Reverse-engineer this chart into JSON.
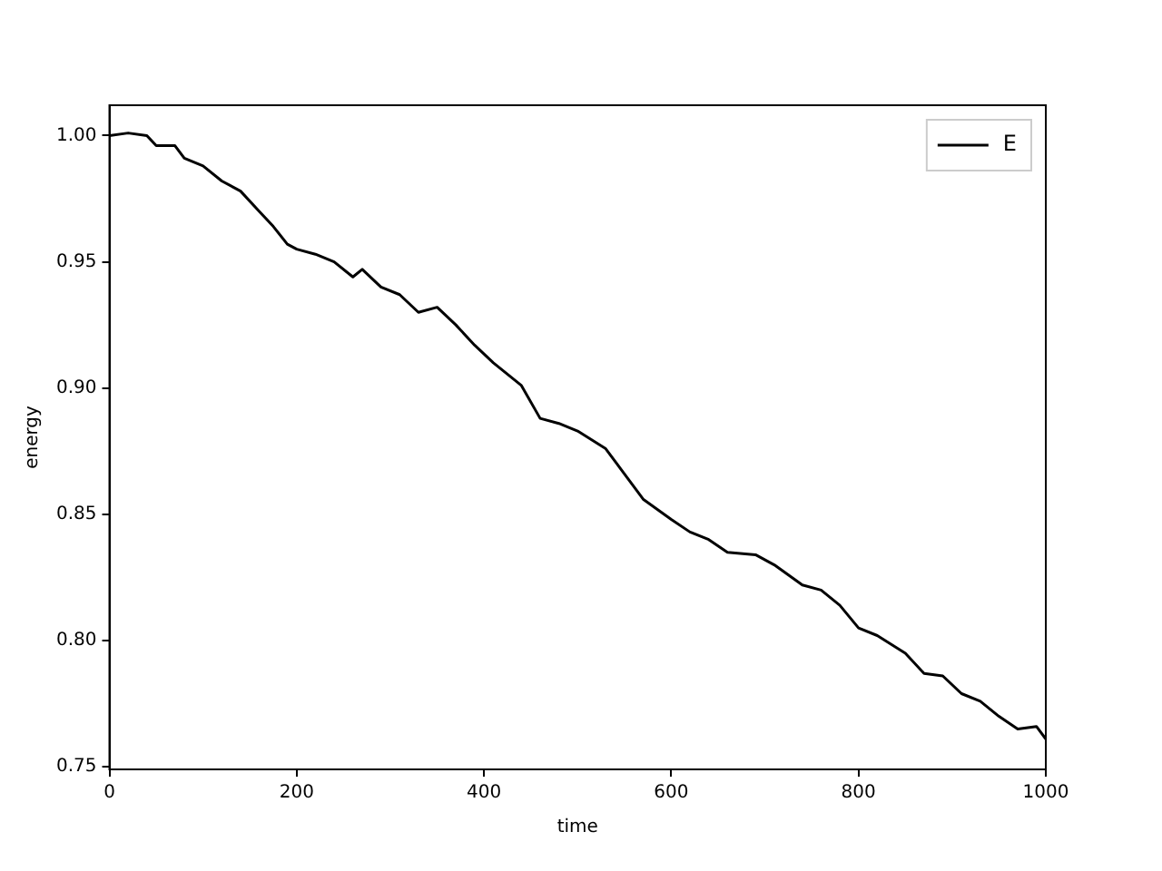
{
  "chart_data": {
    "type": "line",
    "xlabel": "time",
    "ylabel": "energy",
    "x": [
      0,
      20,
      40,
      50,
      70,
      80,
      100,
      120,
      140,
      160,
      175,
      190,
      200,
      220,
      240,
      260,
      270,
      290,
      310,
      330,
      350,
      370,
      390,
      410,
      440,
      460,
      480,
      500,
      530,
      550,
      570,
      600,
      620,
      640,
      660,
      690,
      710,
      740,
      760,
      780,
      800,
      820,
      850,
      870,
      890,
      910,
      930,
      950,
      970,
      990,
      1000
    ],
    "series": [
      {
        "name": "E",
        "color": "#000000",
        "values": [
          1.0,
          1.001,
          1.0,
          0.996,
          0.996,
          0.991,
          0.988,
          0.982,
          0.978,
          0.97,
          0.964,
          0.957,
          0.955,
          0.953,
          0.95,
          0.944,
          0.947,
          0.94,
          0.937,
          0.93,
          0.932,
          0.925,
          0.917,
          0.91,
          0.901,
          0.888,
          0.886,
          0.883,
          0.876,
          0.866,
          0.856,
          0.848,
          0.843,
          0.84,
          0.835,
          0.834,
          0.83,
          0.822,
          0.82,
          0.814,
          0.805,
          0.802,
          0.795,
          0.787,
          0.786,
          0.779,
          0.776,
          0.77,
          0.765,
          0.766,
          0.761
        ]
      }
    ],
    "xlim": [
      0,
      1000
    ],
    "xticks": [
      0,
      200,
      400,
      600,
      800,
      1000
    ],
    "ylim": [
      0.749,
      1.012
    ],
    "yticks": [
      {
        "value": 0.75,
        "label": "0.75"
      },
      {
        "value": 0.8,
        "label": "0.80"
      },
      {
        "value": 0.85,
        "label": "0.85"
      },
      {
        "value": 0.9,
        "label": "0.90"
      },
      {
        "value": 0.95,
        "label": "0.95"
      },
      {
        "value": 1.0,
        "label": "1.00"
      }
    ],
    "grid": false,
    "legend": "top right",
    "marker": "none",
    "line_style": "solid"
  }
}
